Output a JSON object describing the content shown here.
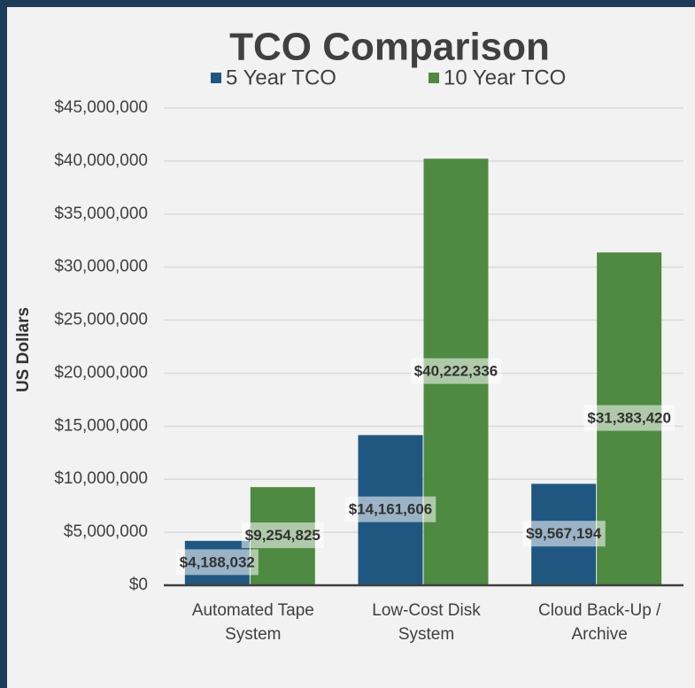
{
  "chart_data": {
    "type": "bar",
    "title": "TCO Comparison",
    "y_label": "US Dollars",
    "categories": [
      "Automated Tape\nSystem",
      "Low-Cost Disk\nSystem",
      "Cloud Back-Up /\nArchive"
    ],
    "series": [
      {
        "name": "5 Year TCO",
        "color": "#1f5780",
        "values": [
          4188032,
          14161606,
          9567194
        ],
        "value_labels": [
          "$4,188,032",
          "$14,161,606",
          "$9,567,194"
        ]
      },
      {
        "name": "10 Year TCO",
        "color": "#4e8a41",
        "values": [
          9254825,
          40222336,
          31383420
        ],
        "value_labels": [
          "$9,254,825",
          "$40,222,336",
          "$31,383,420"
        ]
      }
    ],
    "ylim": [
      0,
      45000000
    ],
    "yticks": [
      {
        "value": 0,
        "label": "$0"
      },
      {
        "value": 5000000,
        "label": "$5,000,000"
      },
      {
        "value": 10000000,
        "label": "$10,000,000"
      },
      {
        "value": 15000000,
        "label": "$15,000,000"
      },
      {
        "value": 20000000,
        "label": "$20,000,000"
      },
      {
        "value": 25000000,
        "label": "$25,000,000"
      },
      {
        "value": 30000000,
        "label": "$30,000,000"
      },
      {
        "value": 35000000,
        "label": "$35,000,000"
      },
      {
        "value": 40000000,
        "label": "$40,000,000"
      },
      {
        "value": 45000000,
        "label": "$45,000,000"
      }
    ],
    "grid": true,
    "legend": "top"
  }
}
